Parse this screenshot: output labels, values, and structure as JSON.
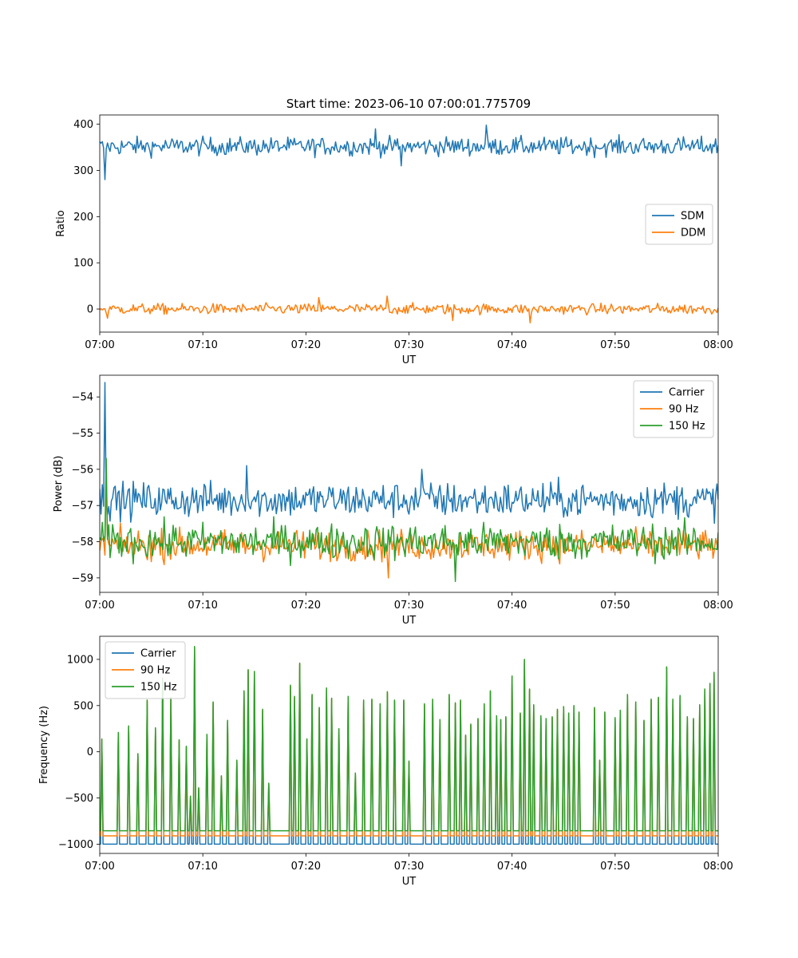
{
  "figure_title": "Start time: 2023-06-10 07:00:01.775709",
  "colors": {
    "blue": "#1f77b4",
    "orange": "#ff7f0e",
    "green": "#2ca02c"
  },
  "chart_data": [
    {
      "type": "line",
      "title": "Start time: 2023-06-10 07:00:01.775709",
      "xlabel": "UT",
      "ylabel": "Ratio",
      "x_ticks": [
        "07:00",
        "07:10",
        "07:20",
        "07:30",
        "07:40",
        "07:50",
        "08:00"
      ],
      "xlim_minutes": [
        0,
        60
      ],
      "ylim": [
        -50,
        420
      ],
      "y_ticks": [
        0,
        100,
        200,
        300,
        400
      ],
      "legend": "center-right",
      "series": [
        {
          "name": "SDM",
          "color": "#1f77b4",
          "mean": 352,
          "noise": 14,
          "spikes": [
            [
              0.5,
              280
            ],
            [
              29.3,
              310
            ],
            [
              37.5,
              398
            ],
            [
              26.8,
              390
            ]
          ]
        },
        {
          "name": "DDM",
          "color": "#ff7f0e",
          "mean": 0,
          "noise": 8,
          "spikes": [
            [
              0.8,
              -20
            ],
            [
              27.9,
              28
            ],
            [
              34.2,
              -25
            ],
            [
              41.8,
              -30
            ],
            [
              21.3,
              25
            ]
          ]
        }
      ]
    },
    {
      "type": "line",
      "xlabel": "UT",
      "ylabel": "Power (dB)",
      "x_ticks": [
        "07:00",
        "07:10",
        "07:20",
        "07:30",
        "07:40",
        "07:50",
        "08:00"
      ],
      "xlim_minutes": [
        0,
        60
      ],
      "ylim": [
        -59.4,
        -53.4
      ],
      "y_ticks": [
        -54,
        -55,
        -56,
        -57,
        -58,
        -59
      ],
      "legend": "upper-right",
      "series": [
        {
          "name": "Carrier",
          "color": "#1f77b4",
          "mean": -56.85,
          "noise": 0.35,
          "spikes": [
            [
              0.5,
              -53.6
            ],
            [
              14.2,
              -55.9
            ],
            [
              31.2,
              -56.0
            ]
          ]
        },
        {
          "name": "90 Hz",
          "color": "#ff7f0e",
          "mean": -58.1,
          "noise": 0.3,
          "spikes": [
            [
              0.6,
              -56.0
            ],
            [
              28.0,
              -59.0
            ]
          ]
        },
        {
          "name": "150 Hz",
          "color": "#2ca02c",
          "mean": -58.0,
          "noise": 0.35,
          "spikes": [
            [
              0.6,
              -55.7
            ],
            [
              34.5,
              -59.1
            ]
          ]
        }
      ]
    },
    {
      "type": "line",
      "xlabel": "UT",
      "ylabel": "Frequency (Hz)",
      "x_ticks": [
        "07:00",
        "07:10",
        "07:20",
        "07:30",
        "07:40",
        "07:50",
        "08:00"
      ],
      "xlim_minutes": [
        0,
        60
      ],
      "ylim": [
        -1100,
        1250
      ],
      "y_ticks": [
        -1000,
        -500,
        0,
        500,
        1000
      ],
      "legend": "upper-left",
      "series": [
        {
          "name": "Carrier",
          "color": "#1f77b4",
          "base": -1000
        },
        {
          "name": "90 Hz",
          "color": "#ff7f0e",
          "base": -910
        },
        {
          "name": "150 Hz",
          "color": "#2ca02c",
          "base": -855
        }
      ],
      "peaks_minutes": [
        0.2,
        1.8,
        2.8,
        3.7,
        4.6,
        5.4,
        6.1,
        6.9,
        7.7,
        8.4,
        8.8,
        9.2,
        9.6,
        10.4,
        11.0,
        11.8,
        12.4,
        13.3,
        14.0,
        14.4,
        15.0,
        15.8,
        16.4,
        18.5,
        18.9,
        19.4,
        20.1,
        20.6,
        21.3,
        22.0,
        22.5,
        23.2,
        24.1,
        24.8,
        25.6,
        26.4,
        27.2,
        27.9,
        28.6,
        29.5,
        30.0,
        31.5,
        32.3,
        33.0,
        33.9,
        34.5,
        35.0,
        35.5,
        36.0,
        36.7,
        37.3,
        37.9,
        38.5,
        38.9,
        39.4,
        40.0,
        40.8,
        41.2,
        41.7,
        42.1,
        42.8,
        43.3,
        43.9,
        44.4,
        45.0,
        45.5,
        46.0,
        46.5,
        48.0,
        48.5,
        49.0,
        50.0,
        50.5,
        51.2,
        52.0,
        52.8,
        53.5,
        54.2,
        55.0,
        55.6,
        56.3,
        57.0,
        57.6,
        58.2,
        58.7,
        59.2,
        59.6
      ],
      "peak_values": [
        140,
        210,
        280,
        -20,
        560,
        260,
        800,
        590,
        130,
        60,
        -480,
        1140,
        -390,
        190,
        540,
        -260,
        340,
        -90,
        660,
        890,
        870,
        460,
        -340,
        720,
        600,
        960,
        140,
        620,
        480,
        690,
        580,
        250,
        600,
        -230,
        560,
        570,
        520,
        650,
        560,
        560,
        -100,
        520,
        570,
        350,
        620,
        530,
        560,
        180,
        300,
        360,
        520,
        660,
        390,
        350,
        380,
        820,
        420,
        1000,
        680,
        510,
        390,
        360,
        380,
        460,
        490,
        420,
        500,
        430,
        480,
        -90,
        430,
        370,
        450,
        620,
        540,
        340,
        570,
        590,
        920,
        570,
        610,
        380,
        360,
        510,
        680,
        740,
        860
      ]
    }
  ]
}
